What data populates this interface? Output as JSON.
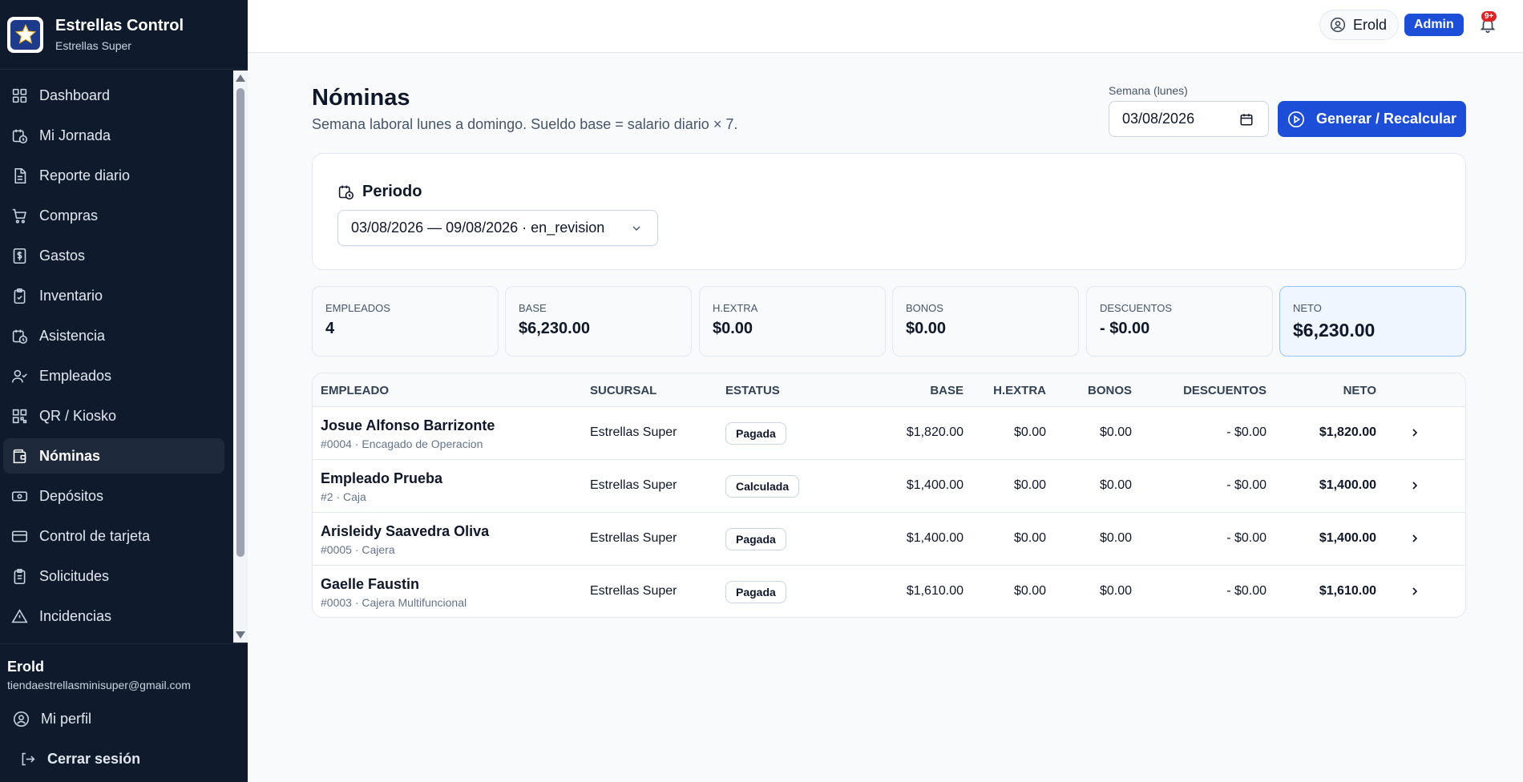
{
  "brand": {
    "title": "Estrellas Control",
    "subtitle": "Estrellas Super"
  },
  "nav": [
    {
      "label": "Dashboard",
      "icon": "dashboard-icon"
    },
    {
      "label": "Mi Jornada",
      "icon": "clock-calendar-icon"
    },
    {
      "label": "Reporte diario",
      "icon": "document-icon"
    },
    {
      "label": "Compras",
      "icon": "cart-icon"
    },
    {
      "label": "Gastos",
      "icon": "dollar-receipt-icon"
    },
    {
      "label": "Inventario",
      "icon": "clipboard-icon"
    },
    {
      "label": "Asistencia",
      "icon": "clock-calendar-icon"
    },
    {
      "label": "Empleados",
      "icon": "users-icon"
    },
    {
      "label": "QR / Kiosko",
      "icon": "qr-icon"
    },
    {
      "label": "Nóminas",
      "icon": "wallet-icon",
      "active": true
    },
    {
      "label": "Depósitos",
      "icon": "banknote-icon"
    },
    {
      "label": "Control de tarjeta",
      "icon": "card-icon"
    },
    {
      "label": "Solicitudes",
      "icon": "clipboard-list-icon"
    },
    {
      "label": "Incidencias",
      "icon": "warning-icon"
    }
  ],
  "user": {
    "name": "Erold",
    "email": "tiendaestrellasminisuper@gmail.com",
    "profile_label": "Mi perfil",
    "logout_label": "Cerrar sesión"
  },
  "topbar": {
    "user_name": "Erold",
    "role": "Admin",
    "notifications": "9+"
  },
  "page": {
    "title": "Nóminas",
    "subtitle": "Semana laboral lunes a domingo. Sueldo base = salario diario × 7.",
    "week_label": "Semana (lunes)",
    "week_value": "03/08/2026",
    "generate_label": "Generar / Recalcular"
  },
  "period": {
    "label": "Periodo",
    "selected": "03/08/2026 — 09/08/2026 · en_revision"
  },
  "stats": [
    {
      "label": "EMPLEADOS",
      "value": "4"
    },
    {
      "label": "BASE",
      "value": "$6,230.00"
    },
    {
      "label": "H.EXTRA",
      "value": "$0.00"
    },
    {
      "label": "BONOS",
      "value": "$0.00"
    },
    {
      "label": "DESCUENTOS",
      "value": "- $0.00"
    },
    {
      "label": "NETO",
      "value": "$6,230.00"
    }
  ],
  "table": {
    "headers": [
      "EMPLEADO",
      "SUCURSAL",
      "ESTATUS",
      "BASE",
      "H.EXTRA",
      "BONOS",
      "DESCUENTOS",
      "NETO"
    ],
    "rows": [
      {
        "name": "Josue Alfonso Barrizonte",
        "sub": "#0004 · Encagado de Operacion",
        "branch": "Estrellas Super",
        "status": "Pagada",
        "base": "$1,820.00",
        "extra": "$0.00",
        "bonus": "$0.00",
        "discount": "- $0.00",
        "net": "$1,820.00"
      },
      {
        "name": "Empleado Prueba",
        "sub": "#2 · Caja",
        "branch": "Estrellas Super",
        "status": "Calculada",
        "base": "$1,400.00",
        "extra": "$0.00",
        "bonus": "$0.00",
        "discount": "- $0.00",
        "net": "$1,400.00"
      },
      {
        "name": "Arisleidy Saavedra Oliva",
        "sub": "#0005 · Cajera",
        "branch": "Estrellas Super",
        "status": "Pagada",
        "base": "$1,400.00",
        "extra": "$0.00",
        "bonus": "$0.00",
        "discount": "- $0.00",
        "net": "$1,400.00"
      },
      {
        "name": "Gaelle Faustin",
        "sub": "#0003 · Cajera Multifuncional",
        "branch": "Estrellas Super",
        "status": "Pagada",
        "base": "$1,610.00",
        "extra": "$0.00",
        "bonus": "$0.00",
        "discount": "- $0.00",
        "net": "$1,610.00"
      }
    ]
  },
  "colors": {
    "sidebar": "#0f1b2d",
    "accent": "#1d4ed8",
    "badge": "#dc2626"
  }
}
